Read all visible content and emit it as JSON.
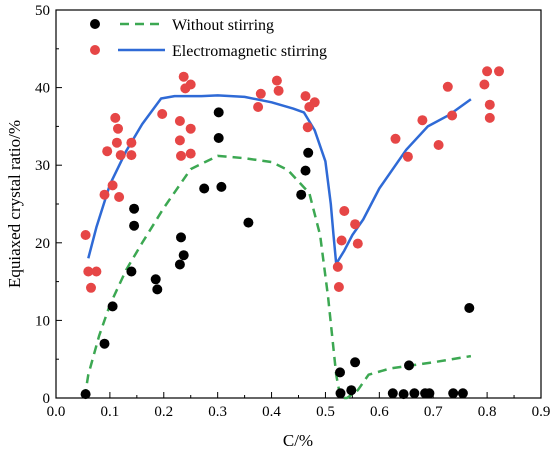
{
  "chart_data": {
    "type": "scatter",
    "title": "",
    "xlabel": "C/%",
    "ylabel": "Equiaxed crystal ratio/%",
    "xlim": [
      0.0,
      0.9
    ],
    "ylim": [
      0,
      50
    ],
    "xticks": [
      "0.0",
      "0.1",
      "0.2",
      "0.3",
      "0.4",
      "0.5",
      "0.6",
      "0.7",
      "0.8",
      "0.9"
    ],
    "yticks": [
      "0",
      "10",
      "20",
      "30",
      "40",
      "50"
    ],
    "grid": false,
    "legend_position": "top",
    "legend": [
      {
        "label": "Without stirring",
        "marker": "black-dot",
        "line": "green-dashed"
      },
      {
        "label": "Electromagnetic stirring",
        "marker": "red-dot",
        "line": "blue-solid"
      }
    ],
    "series": [
      {
        "kind": "scatter",
        "color": "#000000",
        "points": [
          [
            0.055,
            0.5
          ],
          [
            0.09,
            7.0
          ],
          [
            0.105,
            11.8
          ],
          [
            0.14,
            16.3
          ],
          [
            0.145,
            22.2
          ],
          [
            0.145,
            24.4
          ],
          [
            0.185,
            15.3
          ],
          [
            0.188,
            14.0
          ],
          [
            0.23,
            17.2
          ],
          [
            0.232,
            20.7
          ],
          [
            0.237,
            18.4
          ],
          [
            0.275,
            27.0
          ],
          [
            0.302,
            36.8
          ],
          [
            0.302,
            33.5
          ],
          [
            0.307,
            27.2
          ],
          [
            0.357,
            22.6
          ],
          [
            0.455,
            26.2
          ],
          [
            0.463,
            29.3
          ],
          [
            0.468,
            31.6
          ],
          [
            0.527,
            3.3
          ],
          [
            0.528,
            0.6
          ],
          [
            0.548,
            1.0
          ],
          [
            0.555,
            4.6
          ],
          [
            0.625,
            0.6
          ],
          [
            0.645,
            0.5
          ],
          [
            0.655,
            4.2
          ],
          [
            0.665,
            0.6
          ],
          [
            0.685,
            0.6
          ],
          [
            0.693,
            0.6
          ],
          [
            0.737,
            0.6
          ],
          [
            0.755,
            0.6
          ],
          [
            0.767,
            11.6
          ]
        ]
      },
      {
        "kind": "scatter",
        "color": "#e64646",
        "points": [
          [
            0.055,
            21.0
          ],
          [
            0.06,
            16.3
          ],
          [
            0.065,
            14.2
          ],
          [
            0.075,
            16.3
          ],
          [
            0.09,
            26.2
          ],
          [
            0.095,
            31.8
          ],
          [
            0.105,
            27.4
          ],
          [
            0.11,
            36.1
          ],
          [
            0.113,
            32.9
          ],
          [
            0.115,
            34.7
          ],
          [
            0.117,
            25.9
          ],
          [
            0.12,
            31.3
          ],
          [
            0.14,
            31.3
          ],
          [
            0.14,
            32.9
          ],
          [
            0.197,
            36.6
          ],
          [
            0.23,
            35.7
          ],
          [
            0.23,
            33.2
          ],
          [
            0.232,
            31.2
          ],
          [
            0.237,
            41.4
          ],
          [
            0.24,
            39.9
          ],
          [
            0.25,
            34.7
          ],
          [
            0.25,
            40.4
          ],
          [
            0.25,
            31.5
          ],
          [
            0.375,
            37.5
          ],
          [
            0.38,
            39.2
          ],
          [
            0.41,
            40.9
          ],
          [
            0.413,
            39.6
          ],
          [
            0.463,
            38.9
          ],
          [
            0.467,
            34.9
          ],
          [
            0.47,
            37.5
          ],
          [
            0.48,
            38.1
          ],
          [
            0.523,
            16.9
          ],
          [
            0.525,
            14.3
          ],
          [
            0.53,
            20.3
          ],
          [
            0.535,
            24.1
          ],
          [
            0.555,
            22.4
          ],
          [
            0.56,
            19.9
          ],
          [
            0.63,
            33.4
          ],
          [
            0.653,
            31.1
          ],
          [
            0.68,
            35.8
          ],
          [
            0.71,
            32.6
          ],
          [
            0.727,
            40.1
          ],
          [
            0.735,
            36.4
          ],
          [
            0.795,
            40.4
          ],
          [
            0.8,
            42.1
          ],
          [
            0.805,
            36.1
          ],
          [
            0.805,
            37.8
          ],
          [
            0.822,
            42.1
          ]
        ]
      },
      {
        "kind": "line",
        "style": "dashed",
        "color": "#3ca852",
        "points": [
          [
            0.053,
            0
          ],
          [
            0.06,
            3
          ],
          [
            0.08,
            8
          ],
          [
            0.1,
            12
          ],
          [
            0.13,
            16.5
          ],
          [
            0.16,
            20
          ],
          [
            0.2,
            24.5
          ],
          [
            0.25,
            29.5
          ],
          [
            0.3,
            31.2
          ],
          [
            0.35,
            30.9
          ],
          [
            0.4,
            30.4
          ],
          [
            0.43,
            29.4
          ],
          [
            0.47,
            26.4
          ],
          [
            0.49,
            21.0
          ],
          [
            0.505,
            13.0
          ],
          [
            0.52,
            3.0
          ],
          [
            0.528,
            0
          ],
          [
            0.54,
            0
          ],
          [
            0.56,
            1.0
          ],
          [
            0.58,
            3.0
          ],
          [
            0.62,
            3.8
          ],
          [
            0.7,
            4.6
          ],
          [
            0.77,
            5.4
          ]
        ]
      },
      {
        "kind": "line",
        "style": "solid",
        "color": "#2f6ad6",
        "points": [
          [
            0.06,
            18.0
          ],
          [
            0.075,
            22.0
          ],
          [
            0.1,
            27.5
          ],
          [
            0.13,
            31.8
          ],
          [
            0.16,
            35.3
          ],
          [
            0.195,
            38.6
          ],
          [
            0.22,
            38.9
          ],
          [
            0.27,
            38.9
          ],
          [
            0.3,
            39.0
          ],
          [
            0.35,
            38.8
          ],
          [
            0.4,
            38.1
          ],
          [
            0.44,
            37.3
          ],
          [
            0.46,
            36.8
          ],
          [
            0.48,
            34.5
          ],
          [
            0.5,
            30.5
          ],
          [
            0.51,
            25.0
          ],
          [
            0.515,
            21.0
          ],
          [
            0.52,
            17.3
          ],
          [
            0.535,
            19.0
          ],
          [
            0.55,
            21.0
          ],
          [
            0.57,
            23.0
          ],
          [
            0.6,
            27.0
          ],
          [
            0.65,
            32.0
          ],
          [
            0.69,
            35.0
          ],
          [
            0.73,
            36.5
          ],
          [
            0.77,
            38.5
          ]
        ]
      }
    ]
  }
}
